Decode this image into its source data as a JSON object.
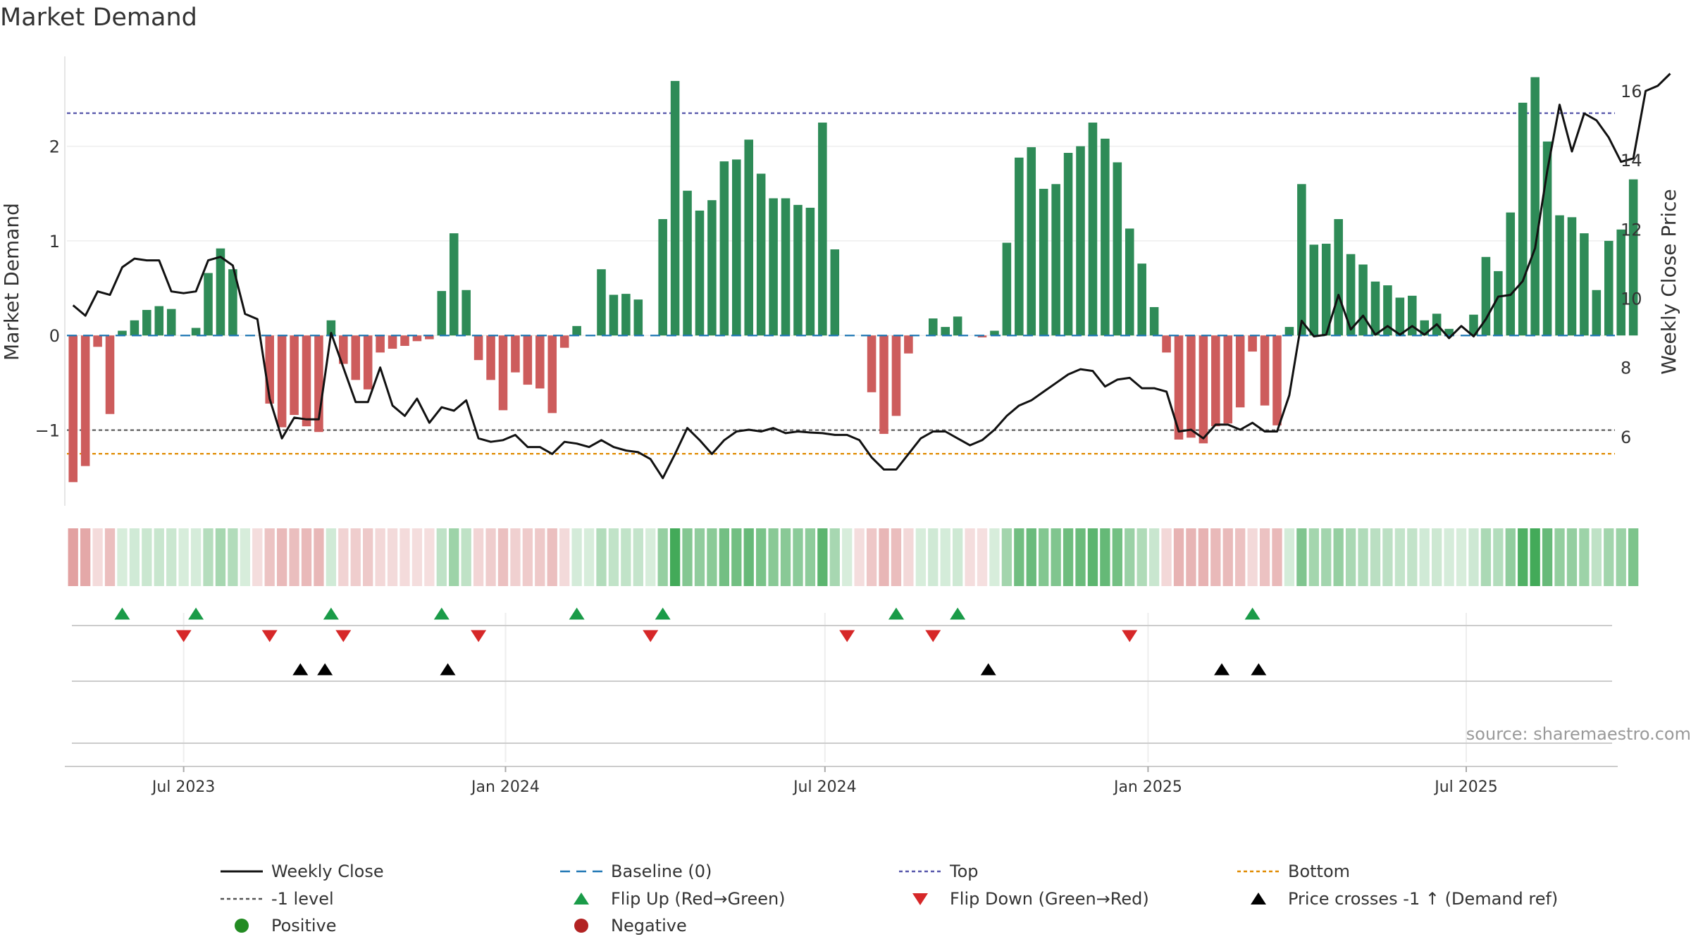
{
  "chart_data": {
    "type": "bar",
    "title": "Market Demand",
    "ylabel": "Market Demand",
    "y2label": "Weekly Close Price",
    "ylim": [
      -1.8,
      2.95
    ],
    "y2lim": [
      4.0,
      17.0
    ],
    "yticks": [
      -1,
      0,
      1,
      2
    ],
    "ytick_labels": [
      "−1",
      "0",
      "1",
      "2"
    ],
    "y2ticks": [
      6,
      8,
      10,
      12,
      14,
      16
    ],
    "y2tick_labels": [
      "6",
      "8",
      "10",
      "12",
      "14",
      "16"
    ],
    "xlim": [
      0,
      126
    ],
    "date_ticks": [
      {
        "label": "Jul 2023",
        "week": 9
      },
      {
        "label": "Jan 2024",
        "week": 35.2
      },
      {
        "label": "Jul 2024",
        "week": 61.2
      },
      {
        "label": "Jan 2025",
        "week": 87.5
      },
      {
        "label": "Jul 2025",
        "week": 113.4
      }
    ],
    "reference_lines": {
      "top": 2.35,
      "bottom": -1.25,
      "minus_one": -1,
      "baseline": 0
    },
    "colors": {
      "positive": "#2e8b57",
      "negative": "#cd5c5c",
      "price": "#111111",
      "baseline": "#1f77b4",
      "top": "#5555aa",
      "bottom": "#e08a00",
      "minus_one": "#555555",
      "flip_up": "#1a9b48",
      "flip_down": "#d62728",
      "cross": "#000000",
      "pos_dot": "#228b22",
      "neg_dot": "#b22222"
    },
    "demand": [
      -1.55,
      -1.38,
      -0.12,
      -0.83,
      0.05,
      0.16,
      0.27,
      0.31,
      0.28,
      0,
      0.08,
      0.66,
      0.92,
      0.7,
      0,
      0,
      -0.72,
      -0.97,
      -0.84,
      -0.96,
      -1.02,
      0.16,
      -0.3,
      -0.47,
      -0.57,
      -0.18,
      -0.14,
      -0.11,
      -0.06,
      -0.04,
      0.47,
      1.08,
      0.48,
      -0.26,
      -0.47,
      -0.79,
      -0.39,
      -0.52,
      -0.56,
      -0.82,
      -0.13,
      0.1,
      0,
      0.7,
      0.43,
      0.44,
      0.38,
      0,
      1.23,
      2.69,
      1.53,
      1.32,
      1.43,
      1.84,
      1.86,
      2.07,
      1.71,
      1.45,
      1.45,
      1.38,
      1.35,
      2.25,
      0.91,
      0,
      0,
      -0.6,
      -1.04,
      -0.85,
      -0.19,
      0,
      0.18,
      0.09,
      0.2,
      0,
      -0.02,
      0.05,
      0.98,
      1.88,
      1.99,
      1.55,
      1.6,
      1.93,
      2.0,
      2.25,
      2.08,
      1.83,
      1.13,
      0.76,
      0.3,
      -0.18,
      -1.1,
      -1.08,
      -1.14,
      -0.96,
      -0.93,
      -0.76,
      -0.17,
      -0.74,
      -0.95,
      0.09,
      1.6,
      0.96,
      0.97,
      1.23,
      0.86,
      0.75,
      0.57,
      0.53,
      0.4,
      0.42,
      0.16,
      0.23,
      0.07,
      0,
      0.22,
      0.83,
      0.68,
      1.3,
      2.46,
      2.73,
      2.05,
      1.27,
      1.25,
      1.08,
      0.48,
      1.0,
      1.12,
      1.65
    ],
    "price": [
      9.8,
      9.5,
      10.2,
      10.1,
      10.9,
      11.15,
      11.1,
      11.1,
      10.2,
      10.15,
      10.2,
      11.1,
      11.2,
      10.95,
      9.55,
      9.4,
      7.1,
      5.95,
      6.55,
      6.5,
      6.5,
      9.0,
      8.0,
      7.0,
      7.0,
      8.0,
      6.9,
      6.6,
      7.1,
      6.4,
      6.85,
      6.75,
      7.05,
      5.95,
      5.85,
      5.9,
      6.05,
      5.7,
      5.7,
      5.5,
      5.85,
      5.8,
      5.7,
      5.9,
      5.7,
      5.6,
      5.55,
      5.35,
      4.8,
      5.5,
      6.25,
      5.9,
      5.5,
      5.9,
      6.15,
      6.2,
      6.15,
      6.25,
      6.1,
      6.15,
      6.12,
      6.1,
      6.05,
      6.05,
      5.9,
      5.4,
      5.05,
      5.05,
      5.5,
      5.95,
      6.15,
      6.15,
      5.95,
      5.75,
      5.9,
      6.2,
      6.6,
      6.9,
      7.05,
      7.3,
      7.55,
      7.8,
      7.95,
      7.9,
      7.45,
      7.65,
      7.7,
      7.4,
      7.4,
      7.3,
      6.15,
      6.2,
      5.95,
      6.35,
      6.35,
      6.2,
      6.4,
      6.15,
      6.15,
      7.2,
      9.35,
      8.9,
      8.95,
      10.1,
      9.1,
      9.5,
      8.95,
      9.2,
      8.95,
      9.2,
      8.95,
      9.25,
      8.85,
      9.2,
      8.9,
      9.4,
      10.05,
      10.1,
      10.5,
      11.45,
      13.7,
      15.6,
      14.25,
      15.35,
      15.15,
      14.65,
      13.95,
      14.05,
      16.0,
      16.15,
      16.5
    ],
    "heat_levels": [
      -1.55,
      -1.38,
      -0.12,
      -0.83,
      0.05,
      0.16,
      0.27,
      0.31,
      0.28,
      0.05,
      0.08,
      0.66,
      0.92,
      0.7,
      0.05,
      -0.05,
      -0.72,
      -0.97,
      -0.84,
      -0.96,
      -1.02,
      0.16,
      -0.3,
      -0.47,
      -0.57,
      -0.18,
      -0.14,
      -0.11,
      -0.06,
      -0.04,
      0.47,
      1.08,
      0.48,
      -0.26,
      -0.47,
      -0.79,
      -0.39,
      -0.52,
      -0.56,
      -0.82,
      -0.13,
      0.1,
      0.05,
      0.7,
      0.43,
      0.44,
      0.38,
      0.05,
      1.23,
      2.69,
      1.53,
      1.32,
      1.43,
      1.84,
      1.86,
      2.07,
      1.71,
      1.45,
      1.45,
      1.38,
      1.35,
      2.25,
      0.91,
      0.05,
      -0.05,
      -0.6,
      -1.04,
      -0.85,
      -0.19,
      0.05,
      0.18,
      0.09,
      0.2,
      -0.05,
      -0.02,
      0.05,
      0.98,
      1.88,
      1.99,
      1.55,
      1.6,
      1.93,
      2.0,
      2.25,
      2.08,
      1.83,
      1.13,
      0.76,
      0.3,
      -0.18,
      -1.1,
      -1.08,
      -1.14,
      -0.96,
      -0.93,
      -0.76,
      -0.17,
      -0.74,
      -0.95,
      0.09,
      1.6,
      0.96,
      0.97,
      1.23,
      0.86,
      0.75,
      0.57,
      0.53,
      0.4,
      0.42,
      0.16,
      0.23,
      0.07,
      0.05,
      0.22,
      0.83,
      0.68,
      1.3,
      2.46,
      2.73,
      2.05,
      1.27,
      1.25,
      1.08,
      0.48,
      1.0,
      1.12,
      1.65
    ],
    "flip_up_weeks": [
      4,
      10,
      21,
      30,
      41,
      48,
      67,
      72,
      96
    ],
    "flip_down_weeks": [
      9,
      16,
      22,
      33,
      47,
      63,
      70,
      86
    ],
    "price_cross_weeks": [
      18.5,
      20.5,
      30.5,
      74.5,
      93.5,
      96.5
    ],
    "legend": [
      {
        "label": "Weekly Close",
        "marker": "line-solid"
      },
      {
        "label": "Baseline (0)",
        "marker": "line-dashed-blue"
      },
      {
        "label": "Top",
        "marker": "line-dotted-purple"
      },
      {
        "label": "Bottom",
        "marker": "line-dotted-orange"
      },
      {
        "label": "-1 level",
        "marker": "line-dotted-gray"
      },
      {
        "label": "Flip Up (Red→Green)",
        "marker": "triangle-up-green"
      },
      {
        "label": "Flip Down (Green→Red)",
        "marker": "triangle-down-red"
      },
      {
        "label": "Price crosses -1 ↑ (Demand ref)",
        "marker": "triangle-up-black"
      },
      {
        "label": "Positive",
        "marker": "dot-green"
      },
      {
        "label": "Negative",
        "marker": "dot-red"
      }
    ],
    "source": "source: sharemaestro.com"
  }
}
